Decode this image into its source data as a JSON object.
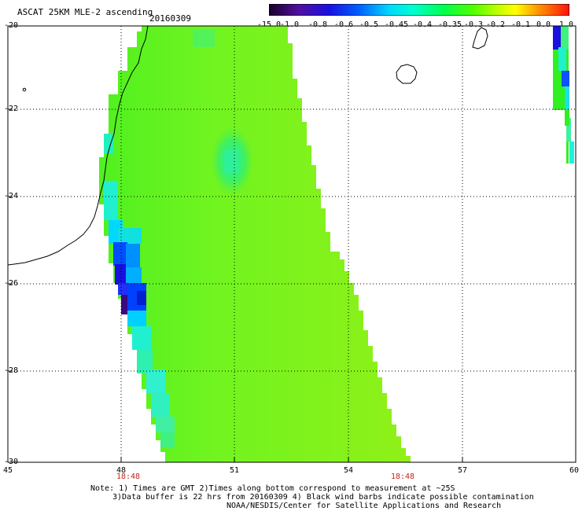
{
  "title": "ASCAT 25KM MLE-2 ascending",
  "date": "20160309",
  "colorbar": {
    "labels": [
      "-15.0",
      "-1.0",
      "-0.8",
      "-0.6",
      "-0.5",
      "-0.45",
      "-0.4",
      "-0.35",
      "-0.3",
      "-0.2",
      "-0.1",
      "0.0",
      "1.0"
    ],
    "colors": [
      "#2a0033",
      "#4a0a8a",
      "#2a10cc",
      "#0030ff",
      "#0090ff",
      "#00e8e8",
      "#00ffb0",
      "#00ff40",
      "#40ff00",
      "#a0ff00",
      "#ffff00",
      "#ff8000",
      "#ff1010"
    ]
  },
  "axes": {
    "y_ticks": [
      "-20",
      "-22",
      "-24",
      "-26",
      "-28",
      "-30"
    ],
    "x_ticks": [
      "45",
      "48",
      "51",
      "54",
      "57",
      "60"
    ],
    "time_labels": [
      {
        "lon": "48",
        "text": "18:48"
      },
      {
        "lon": "54",
        "text": "18:48"
      }
    ]
  },
  "notes": {
    "line1": "Note: 1) Times are GMT 2)Times along bottom correspond to measurement at ~25S",
    "line2": "3)Data buffer is 22 hrs from 20160309 4) Black wind barbs indicate possible contamination",
    "line3": "NOAA/NESDIS/Center for Satellite Applications and Research"
  }
}
